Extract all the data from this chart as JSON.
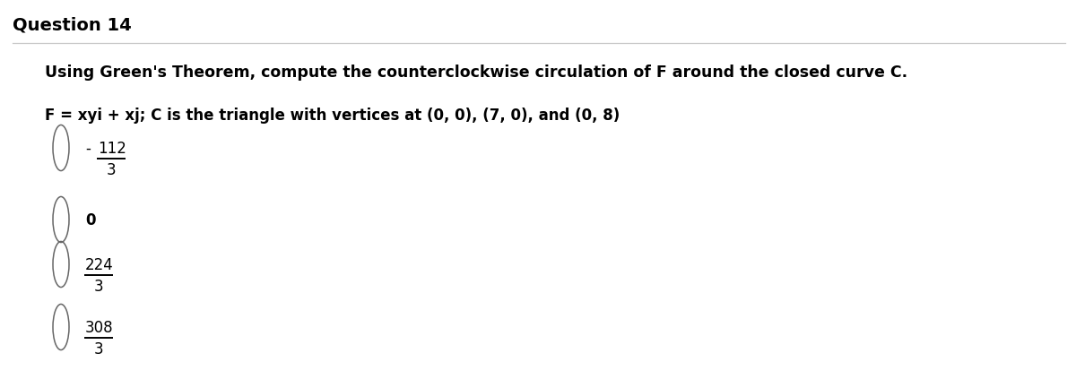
{
  "title": "Question 14",
  "subtitle": "Using Green's Theorem, compute the counterclockwise circulation of F around the closed curve C.",
  "problem_text": "F = xyi + xj; C is the triangle with vertices at (0, 0), (7, 0), and (0, 8)",
  "options": [
    {
      "minus": "-",
      "numerator": "112",
      "denominator": "3",
      "show_fraction": true
    },
    {
      "minus": "",
      "numerator": "0",
      "denominator": "",
      "show_fraction": false
    },
    {
      "minus": "",
      "numerator": "224",
      "denominator": "3",
      "show_fraction": true
    },
    {
      "minus": "",
      "numerator": "308",
      "denominator": "3",
      "show_fraction": true
    }
  ],
  "background_color": "#ffffff",
  "text_color": "#000000",
  "title_fontsize": 14,
  "subtitle_fontsize": 12.5,
  "body_fontsize": 12,
  "option_fontsize": 12,
  "fig_width": 12.0,
  "fig_height": 4.23,
  "dpi": 100
}
